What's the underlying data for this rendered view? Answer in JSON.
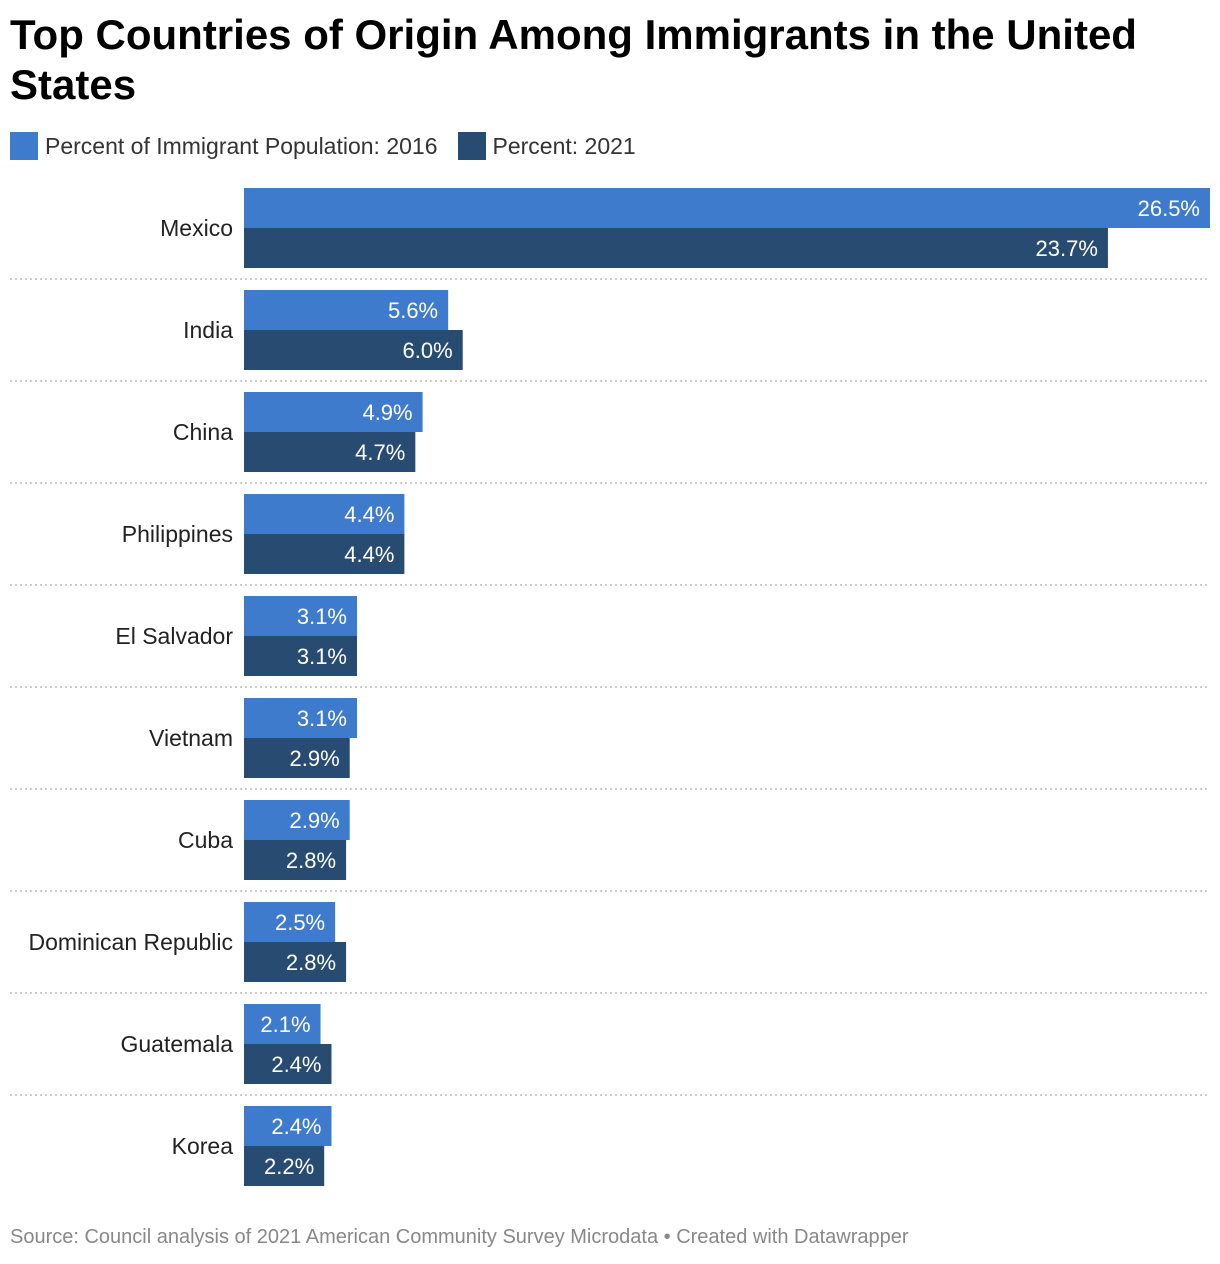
{
  "title": "Top Countries of Origin Among Immigrants in the United States",
  "legend": [
    {
      "label": "Percent of Immigrant Population: 2016",
      "color": "#3f7bcc"
    },
    {
      "label": "Percent: 2021",
      "color": "#284b72"
    }
  ],
  "footer": {
    "source": "Source: Council analysis of 2021 American Community Survey Microdata",
    "separator": " • ",
    "credit": "Created with Datawrapper"
  },
  "chart_data": {
    "type": "bar",
    "orientation": "horizontal",
    "categories": [
      "Mexico",
      "India",
      "China",
      "Philippines",
      "El Salvador",
      "Vietnam",
      "Cuba",
      "Dominican Republic",
      "Guatemala",
      "Korea"
    ],
    "series": [
      {
        "name": "Percent of Immigrant Population: 2016",
        "values": [
          26.5,
          5.6,
          4.9,
          4.4,
          3.1,
          3.1,
          2.9,
          2.5,
          2.1,
          2.4
        ],
        "labels": [
          "26.5%",
          "5.6%",
          "4.9%",
          "4.4%",
          "3.1%",
          "3.1%",
          "2.9%",
          "2.5%",
          "2.1%",
          "2.4%"
        ],
        "color": "#3f7bcc"
      },
      {
        "name": "Percent: 2021",
        "values": [
          23.7,
          6.0,
          4.7,
          4.4,
          3.1,
          2.9,
          2.8,
          2.8,
          2.4,
          2.2
        ],
        "labels": [
          "23.7%",
          "6.0%",
          "4.7%",
          "4.4%",
          "3.1%",
          "2.9%",
          "2.8%",
          "2.8%",
          "2.4%",
          "2.2%"
        ],
        "color": "#284b72"
      }
    ],
    "title": "Top Countries of Origin Among Immigrants in the United States",
    "xlim": [
      0,
      26.5
    ],
    "grid": false,
    "legend_position": "top-left"
  }
}
